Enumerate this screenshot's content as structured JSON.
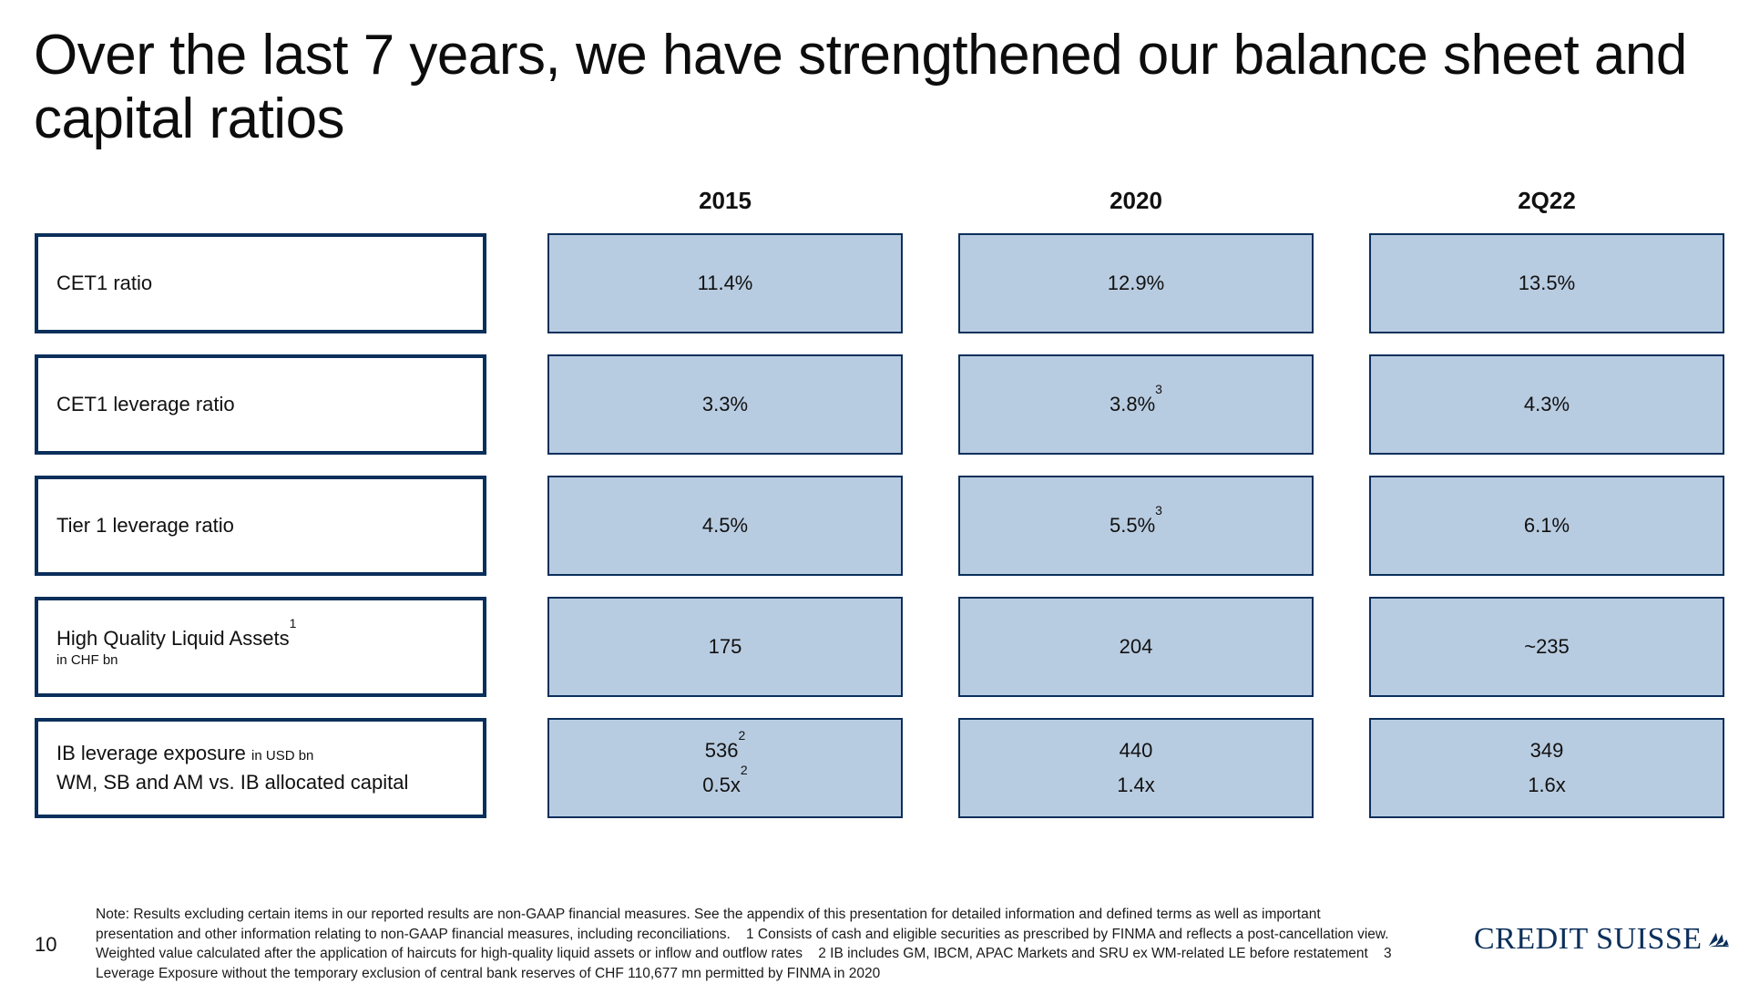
{
  "title": "Over the last 7 years, we have strengthened our balance sheet and capital ratios",
  "columns": [
    "2015",
    "2020",
    "2Q22"
  ],
  "rows": [
    {
      "label": "CET1 ratio",
      "values": [
        "11.4%",
        "12.9%",
        "13.5%"
      ]
    },
    {
      "label": "CET1 leverage ratio",
      "values": [
        "3.3%",
        "3.8%",
        "4.3%"
      ],
      "footnotes": [
        "",
        "3",
        ""
      ]
    },
    {
      "label": "Tier 1 leverage ratio",
      "values": [
        "4.5%",
        "5.5%",
        "6.1%"
      ],
      "footnotes": [
        "",
        "3",
        ""
      ]
    },
    {
      "label": "High Quality Liquid Assets",
      "label_footnote": "1",
      "sublabel": "in CHF bn",
      "values": [
        "175",
        "204",
        "~235"
      ]
    },
    {
      "label": "IB leverage exposure",
      "label_inline_sub": "in USD bn",
      "label2": "WM, SB and AM vs. IB allocated capital",
      "values": [
        "536",
        "440",
        "349"
      ],
      "footnotes": [
        "2",
        "",
        ""
      ],
      "values2": [
        "0.5x",
        "1.4x",
        "1.6x"
      ],
      "footnotes2": [
        "2",
        "",
        ""
      ]
    }
  ],
  "page_number": "10",
  "note": "Note: Results excluding certain items in our reported results are non-GAAP financial measures. See the appendix of this presentation for detailed information and defined terms as well as important presentation and other information relating to non-GAAP financial measures, including reconciliations.    1 Consists of cash and eligible securities as prescribed by FINMA and reflects a post-cancellation view. Weighted value calculated after the application of haircuts for high-quality liquid assets or inflow and outflow rates    2 IB includes GM, IBCM, APAC Markets and SRU ex WM-related LE before restatement    3 Leverage Exposure without the temporary exclusion of central bank reserves of CHF 110,677 mn permitted by FINMA in 2020",
  "logo": {
    "text": "CREDIT SUISSE",
    "color": "#0b2f5b",
    "icon": "sails-logo-icon"
  },
  "colors": {
    "label_border": "#0b2f5b",
    "value_fill": "#b8cce1"
  }
}
